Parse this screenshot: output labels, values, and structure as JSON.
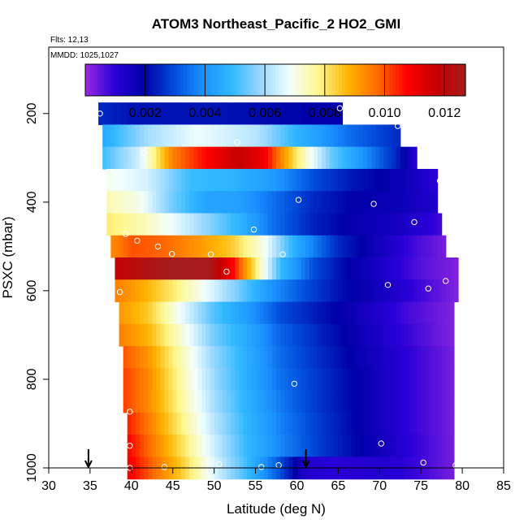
{
  "chart_data": {
    "type": "heatmap",
    "title": "ATOM3 Northeast_Pacific_2 HO2_GMI",
    "annotations": {
      "flights": "Flts: 12,13",
      "dates": "MMDD: 1025,1027"
    },
    "xlabel": "Latitude (deg N)",
    "ylabel": "PSXC (mbar)",
    "xlim": [
      30,
      85
    ],
    "ylim": [
      1000,
      50
    ],
    "xticks": [
      "30",
      "35",
      "40",
      "45",
      "50",
      "55",
      "60",
      "65",
      "70",
      "75",
      "80",
      "85"
    ],
    "yticks": [
      "200",
      "400",
      "600",
      "800",
      "1000"
    ],
    "colorbar": {
      "min": 0.0,
      "max": 0.0127,
      "ticks": [
        "0.002",
        "0.004",
        "0.006",
        "0.008",
        "0.010",
        "0.012"
      ],
      "colors": [
        "#9a2be0",
        "#2a00d8",
        "#0000a8",
        "#0048d8",
        "#1a90ff",
        "#30b8ff",
        "#9ad8ff",
        "#f2ffff",
        "#fff78a",
        "#ffb400",
        "#ff6a00",
        "#ff0000",
        "#c80000",
        "#a61c1c"
      ]
    },
    "rows": [
      {
        "p": 200,
        "xmin": 36,
        "xmax": 65.5,
        "ctrl": [
          [
            36,
            0.0025
          ],
          [
            40,
            0.0022
          ],
          [
            50,
            0.0022
          ],
          [
            60,
            0.002
          ],
          [
            65.5,
            0.0018
          ]
        ]
      },
      {
        "p": 250,
        "xmin": 36.5,
        "xmax": 72.5,
        "ctrl": [
          [
            36.5,
            0.0045
          ],
          [
            42,
            0.006
          ],
          [
            48,
            0.0068
          ],
          [
            55,
            0.0062
          ],
          [
            60,
            0.0048
          ],
          [
            66,
            0.0035
          ],
          [
            72.5,
            0.0025
          ]
        ]
      },
      {
        "p": 300,
        "xmin": 36.5,
        "xmax": 74.5,
        "ctrl": [
          [
            36.5,
            0.005
          ],
          [
            41,
            0.0065
          ],
          [
            45,
            0.0095
          ],
          [
            50,
            0.011
          ],
          [
            53,
            0.0118
          ],
          [
            56,
            0.011
          ],
          [
            60,
            0.008
          ],
          [
            64,
            0.0055
          ],
          [
            68,
            0.004
          ],
          [
            72,
            0.0025
          ],
          [
            74.5,
            0.001
          ]
        ]
      },
      {
        "p": 350,
        "xmin": 37,
        "xmax": 77,
        "ctrl": [
          [
            37,
            0.007
          ],
          [
            42,
            0.0065
          ],
          [
            47,
            0.005
          ],
          [
            52,
            0.0048
          ],
          [
            57,
            0.0042
          ],
          [
            62,
            0.003
          ],
          [
            67,
            0.0022
          ],
          [
            72,
            0.0018
          ],
          [
            77,
            0.001
          ]
        ]
      },
      {
        "p": 400,
        "xmin": 37,
        "xmax": 77,
        "ctrl": [
          [
            37,
            0.0075
          ],
          [
            41,
            0.007
          ],
          [
            45,
            0.0055
          ],
          [
            49,
            0.0044
          ],
          [
            53,
            0.0043
          ],
          [
            57,
            0.0035
          ],
          [
            62,
            0.0025
          ],
          [
            67,
            0.0019
          ],
          [
            72,
            0.0017
          ],
          [
            77,
            0.0012
          ]
        ]
      },
      {
        "p": 450,
        "xmin": 37,
        "xmax": 77.5,
        "ctrl": [
          [
            37,
            0.008
          ],
          [
            41,
            0.0075
          ],
          [
            45,
            0.0068
          ],
          [
            49,
            0.0058
          ],
          [
            53,
            0.0048
          ],
          [
            57,
            0.0035
          ],
          [
            62,
            0.0024
          ],
          [
            67,
            0.0018
          ],
          [
            72,
            0.0015
          ],
          [
            77.5,
            0.0008
          ]
        ]
      },
      {
        "p": 500,
        "xmin": 37.5,
        "xmax": 78,
        "ctrl": [
          [
            37.5,
            0.0093
          ],
          [
            40,
            0.01
          ],
          [
            44,
            0.0098
          ],
          [
            48,
            0.0092
          ],
          [
            52,
            0.0085
          ],
          [
            56,
            0.007
          ],
          [
            60,
            0.0045
          ],
          [
            65,
            0.0025
          ],
          [
            70,
            0.0015
          ],
          [
            74,
            0.0008
          ],
          [
            78,
            0.0003
          ]
        ]
      },
      {
        "p": 550,
        "xmin": 38,
        "xmax": 79.5,
        "ctrl": [
          [
            38,
            0.0118
          ],
          [
            41,
            0.0122
          ],
          [
            45,
            0.0128
          ],
          [
            49,
            0.0128
          ],
          [
            52,
            0.011
          ],
          [
            55,
            0.008
          ],
          [
            58,
            0.005
          ],
          [
            62,
            0.003
          ],
          [
            66,
            0.002
          ],
          [
            71,
            0.0012
          ],
          [
            75,
            0.0006
          ],
          [
            79.5,
            0.0002
          ]
        ]
      },
      {
        "p": 600,
        "xmin": 38,
        "xmax": 79.5,
        "ctrl": [
          [
            38,
            0.0095
          ],
          [
            41,
            0.009
          ],
          [
            45,
            0.008
          ],
          [
            49,
            0.0068
          ],
          [
            53,
            0.0055
          ],
          [
            57,
            0.004
          ],
          [
            61,
            0.003
          ],
          [
            65,
            0.0022
          ],
          [
            70,
            0.0015
          ],
          [
            75,
            0.0008
          ],
          [
            79.5,
            0.0002
          ]
        ]
      },
      {
        "p": 650,
        "xmin": 38.5,
        "xmax": 79,
        "ctrl": [
          [
            38.5,
            0.0092
          ],
          [
            42,
            0.0085
          ],
          [
            46,
            0.0068
          ],
          [
            50,
            0.0052
          ],
          [
            54,
            0.0042
          ],
          [
            58,
            0.003
          ],
          [
            63,
            0.0022
          ],
          [
            68,
            0.0015
          ],
          [
            73,
            0.0008
          ],
          [
            79,
            0.0002
          ]
        ]
      },
      {
        "p": 700,
        "xmin": 38.5,
        "xmax": 79,
        "ctrl": [
          [
            38.5,
            0.0095
          ],
          [
            42,
            0.0088
          ],
          [
            46,
            0.0072
          ],
          [
            50,
            0.0055
          ],
          [
            54,
            0.0045
          ],
          [
            58,
            0.0033
          ],
          [
            63,
            0.0024
          ],
          [
            68,
            0.0016
          ],
          [
            73,
            0.0009
          ],
          [
            79,
            0.0002
          ]
        ]
      },
      {
        "p": 750,
        "xmin": 39,
        "xmax": 79,
        "ctrl": [
          [
            39,
            0.01
          ],
          [
            42,
            0.0092
          ],
          [
            46,
            0.0075
          ],
          [
            50,
            0.0058
          ],
          [
            54,
            0.0046
          ],
          [
            58,
            0.0034
          ],
          [
            63,
            0.0025
          ],
          [
            68,
            0.0017
          ],
          [
            73,
            0.001
          ],
          [
            79,
            0.0003
          ]
        ]
      },
      {
        "p": 800,
        "xmin": 39,
        "xmax": 79,
        "ctrl": [
          [
            39,
            0.0102
          ],
          [
            42,
            0.0094
          ],
          [
            46,
            0.0076
          ],
          [
            50,
            0.0059
          ],
          [
            54,
            0.0046
          ],
          [
            58,
            0.0035
          ],
          [
            63,
            0.0026
          ],
          [
            68,
            0.0018
          ],
          [
            73,
            0.001
          ],
          [
            79,
            0.0003
          ]
        ]
      },
      {
        "p": 850,
        "xmin": 39,
        "xmax": 79,
        "ctrl": [
          [
            39,
            0.0102
          ],
          [
            42,
            0.0094
          ],
          [
            46,
            0.0077
          ],
          [
            50,
            0.006
          ],
          [
            54,
            0.0047
          ],
          [
            58,
            0.0036
          ],
          [
            63,
            0.0026
          ],
          [
            68,
            0.0018
          ],
          [
            73,
            0.001
          ],
          [
            79,
            0.0003
          ]
        ]
      },
      {
        "p": 900,
        "xmin": 39.5,
        "xmax": 79,
        "ctrl": [
          [
            39.5,
            0.0105
          ],
          [
            42,
            0.0096
          ],
          [
            46,
            0.0079
          ],
          [
            50,
            0.0062
          ],
          [
            54,
            0.0048
          ],
          [
            58,
            0.0037
          ],
          [
            63,
            0.0027
          ],
          [
            68,
            0.0018
          ],
          [
            73,
            0.001
          ],
          [
            79,
            0.0003
          ]
        ]
      },
      {
        "p": 950,
        "xmin": 39.5,
        "xmax": 79,
        "ctrl": [
          [
            39.5,
            0.0108
          ],
          [
            42,
            0.0098
          ],
          [
            46,
            0.0082
          ],
          [
            50,
            0.0064
          ],
          [
            54,
            0.0049
          ],
          [
            58,
            0.0038
          ],
          [
            63,
            0.0027
          ],
          [
            68,
            0.0019
          ],
          [
            73,
            0.0011
          ],
          [
            79,
            0.0003
          ]
        ]
      },
      {
        "p": 1000,
        "xmin": 39.5,
        "xmax": 79,
        "ctrl": [
          [
            39.5,
            0.011
          ],
          [
            42,
            0.01
          ],
          [
            46,
            0.0085
          ],
          [
            50,
            0.0066
          ],
          [
            54,
            0.005
          ],
          [
            58,
            0.003
          ],
          [
            61,
            0.0012
          ],
          [
            65,
            0.001
          ],
          [
            70,
            0.0012
          ],
          [
            75,
            0.0008
          ],
          [
            79,
            0.0003
          ]
        ]
      }
    ],
    "points": [
      [
        36.2,
        200
      ],
      [
        65.2,
        188
      ],
      [
        72.2,
        228
      ],
      [
        52.8,
        265
      ],
      [
        41.5,
        288
      ],
      [
        77.3,
        352
      ],
      [
        60.2,
        395
      ],
      [
        69.3,
        404
      ],
      [
        74.2,
        445
      ],
      [
        39.3,
        472
      ],
      [
        40.7,
        487
      ],
      [
        54.8,
        462
      ],
      [
        43.2,
        500
      ],
      [
        44.9,
        517
      ],
      [
        49.6,
        518
      ],
      [
        58.3,
        518
      ],
      [
        51.5,
        557
      ],
      [
        78.0,
        578
      ],
      [
        71.0,
        587
      ],
      [
        75.9,
        595
      ],
      [
        38.6,
        603
      ],
      [
        59.7,
        810
      ],
      [
        39.8,
        873
      ],
      [
        70.2,
        945
      ],
      [
        39.8,
        950
      ],
      [
        75.3,
        988
      ],
      [
        50.6,
        992
      ],
      [
        55.7,
        998
      ],
      [
        57.8,
        994
      ],
      [
        44.0,
        998
      ],
      [
        79.2,
        994
      ],
      [
        39.8,
        1000
      ]
    ],
    "arrows": [
      34.8,
      61.1
    ]
  }
}
